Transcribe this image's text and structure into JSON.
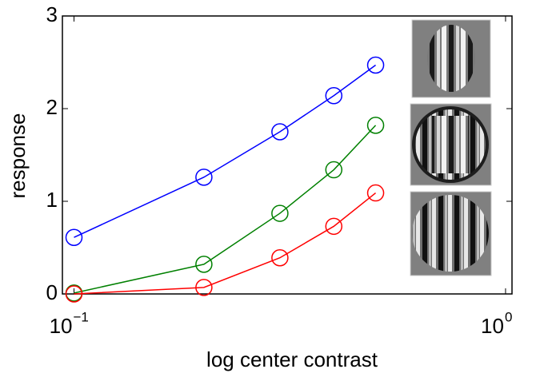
{
  "chart_data": {
    "type": "line",
    "x_label": "log center contrast",
    "y_label": "response",
    "x": [
      0.1,
      0.2,
      0.3,
      0.4,
      0.5
    ],
    "series": [
      {
        "color": "#0000ff",
        "values": [
          0.61,
          1.26,
          1.75,
          2.14,
          2.47
        ]
      },
      {
        "color": "#008000",
        "values": [
          0.01,
          0.32,
          0.87,
          1.34,
          1.82
        ]
      },
      {
        "color": "#ff0000",
        "values": [
          0.0,
          0.07,
          0.39,
          0.73,
          1.09
        ]
      }
    ],
    "xscale": "log",
    "xlim": [
      0.094,
      1.035
    ],
    "xticks": [
      {
        "value": 0.1,
        "label": "10",
        "exponent": "−1"
      },
      {
        "value": 1,
        "label": "10",
        "exponent": "0"
      }
    ],
    "ylim": [
      0,
      3
    ],
    "yticks": [
      0,
      1,
      2,
      3
    ],
    "grid": false
  }
}
